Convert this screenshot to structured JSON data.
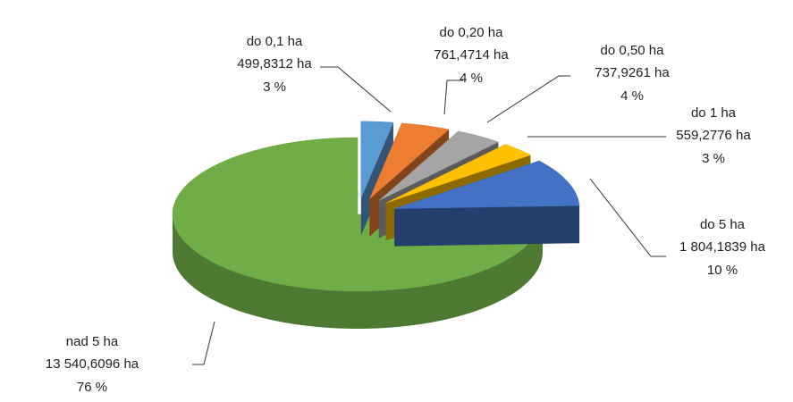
{
  "chart_data": {
    "type": "pie3d",
    "categories": [
      "do 0,1 ha",
      "do 0,20 ha",
      "do 0,50 ha",
      "do 1 ha",
      "do 5 ha",
      "nad 5 ha"
    ],
    "values": [
      499.8312,
      761.4714,
      737.9261,
      559.2776,
      1804.1839,
      13540.6096
    ],
    "value_labels": [
      "499,8312 ha",
      "761,4714 ha",
      "737,9261 ha",
      "559,2776 ha",
      "1 804,1839 ha",
      "13 540,6096 ha"
    ],
    "percentages": [
      3,
      4,
      4,
      3,
      10,
      76
    ],
    "percentage_labels": [
      "3 %",
      "4 %",
      "4 %",
      "3 %",
      "10 %",
      "76 %"
    ],
    "colors": [
      "#5b9bd5",
      "#ed7d31",
      "#a5a5a5",
      "#ffc000",
      "#4472c4",
      "#70ad47"
    ]
  }
}
